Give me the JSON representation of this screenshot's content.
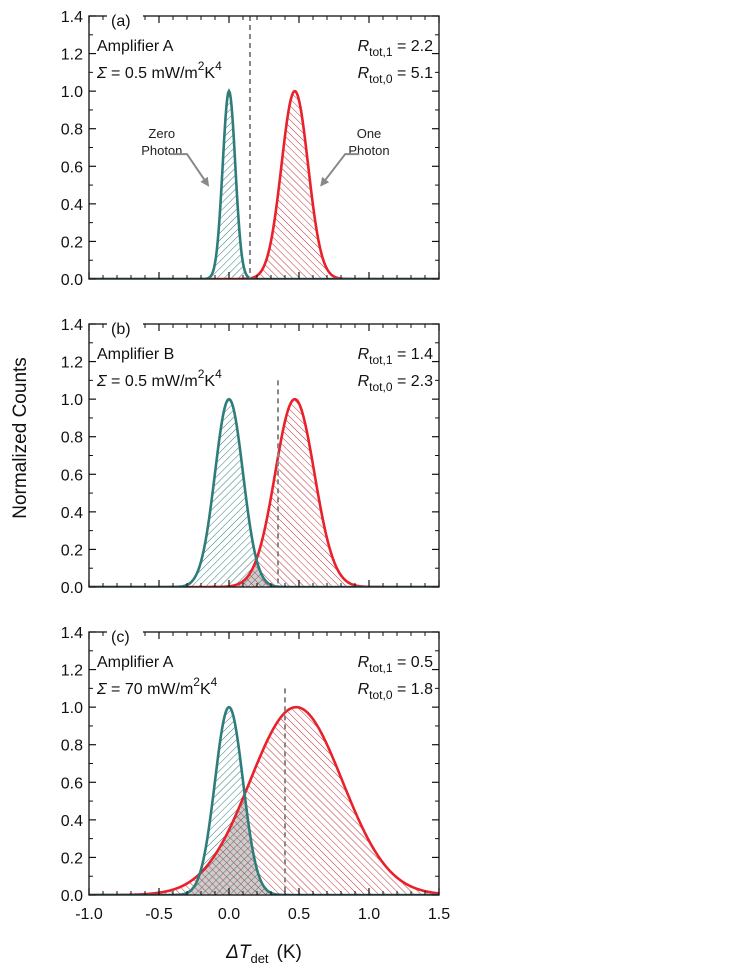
{
  "chart_data": {
    "type": "line",
    "ylabel": "Normalized Counts",
    "xlabel_main": "ΔT",
    "xlabel_sub": "det",
    "xlabel_unit": "(K)",
    "xlim": [
      -1.0,
      1.5
    ],
    "ylim": [
      0.0,
      1.4
    ],
    "x_ticks": [
      "-1.0",
      "-0.5",
      "0.0",
      "0.5",
      "1.0",
      "1.5"
    ],
    "y_ticks": [
      "0.0",
      "0.2",
      "0.4",
      "0.6",
      "0.8",
      "1.0",
      "1.2",
      "1.4"
    ],
    "colors": {
      "zero": "#2e7d7b",
      "one": "#e8212b",
      "threshold": "#888888"
    },
    "arrow_labels": {
      "zero": {
        "line1": "Zero",
        "line2": "Photon"
      },
      "one": {
        "line1": "One",
        "line2": "Photon"
      }
    },
    "panels": [
      {
        "label": "(a)",
        "amplifier": "Amplifier A",
        "sigma_symbol": "Σ",
        "sigma_value": "= 0.5 mW/m",
        "sigma_exp1": "2",
        "sigma_unit2": "K",
        "sigma_exp2": "4",
        "r1_sub": "tot,1",
        "r1_value": "= 2.2",
        "r0_sub": "tot,0",
        "r0_value": "= 5.1",
        "zero_peak": {
          "center": 0.0,
          "sigma": 0.045
        },
        "one_peak": {
          "center": 0.47,
          "sigma": 0.095
        },
        "threshold": 0.15,
        "show_arrows": true
      },
      {
        "label": "(b)",
        "amplifier": "Amplifier B",
        "sigma_symbol": "Σ",
        "sigma_value": "= 0.5 mW/m",
        "sigma_exp1": "2",
        "sigma_unit2": "K",
        "sigma_exp2": "4",
        "r1_sub": "tot,1",
        "r1_value": "= 1.4",
        "r0_sub": "tot,0",
        "r0_value": "= 2.3",
        "zero_peak": {
          "center": 0.0,
          "sigma": 0.1
        },
        "one_peak": {
          "center": 0.47,
          "sigma": 0.14
        },
        "threshold": 0.35,
        "show_arrows": false
      },
      {
        "label": "(c)",
        "amplifier": "Amplifier A",
        "sigma_symbol": "Σ",
        "sigma_value": "= 70 mW/m",
        "sigma_exp1": "2",
        "sigma_unit2": "K",
        "sigma_exp2": "4",
        "r1_sub": "tot,1",
        "r1_value": "= 0.5",
        "r0_sub": "tot,0",
        "r0_value": "= 1.8",
        "zero_peak": {
          "center": 0.0,
          "sigma": 0.1
        },
        "one_peak": {
          "center": 0.48,
          "sigma": 0.33
        },
        "threshold": 0.4,
        "show_arrows": false
      }
    ]
  }
}
